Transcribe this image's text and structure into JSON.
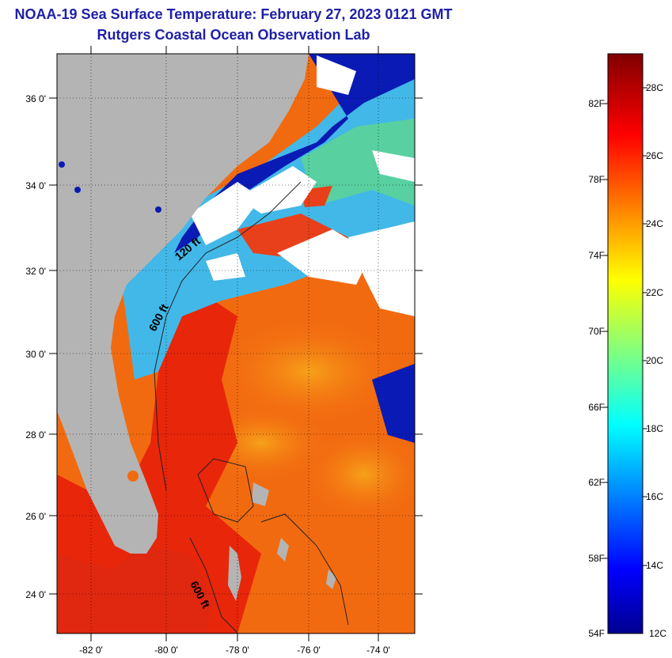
{
  "title": {
    "line1": "NOAA-19 Sea Surface Temperature:  February 27, 2023 0121 GMT",
    "line2": "Rutgers Coastal Ocean Observation Lab"
  },
  "map": {
    "lat_labels": [
      "36 0'",
      "34 0'",
      "32 0'",
      "30 0'",
      "28 0'",
      "26 0'",
      "24 0'"
    ],
    "lon_labels": [
      "-82 0'",
      "-80 0'",
      "-78 0'",
      "-76 0'",
      "-74 0'"
    ],
    "isobath_labels": [
      "120 ft",
      "600 ft",
      "600 ft"
    ],
    "colors": {
      "land": "#b4b4b4",
      "cloud": "#ffffff",
      "gulf_stream": "#e8260a",
      "warm": "#f26a10",
      "shelf": "#42b8e8",
      "cold": "#0a1ab4"
    }
  },
  "colorbar": {
    "fahrenheit_labels": [
      "82F",
      "78F",
      "74F",
      "70F",
      "66F",
      "62F",
      "58F",
      "54F"
    ],
    "celsius_labels": [
      "28C",
      "26C",
      "24C",
      "22C",
      "20C",
      "18C",
      "16C",
      "14C",
      "12C"
    ],
    "colormap": "jet"
  }
}
